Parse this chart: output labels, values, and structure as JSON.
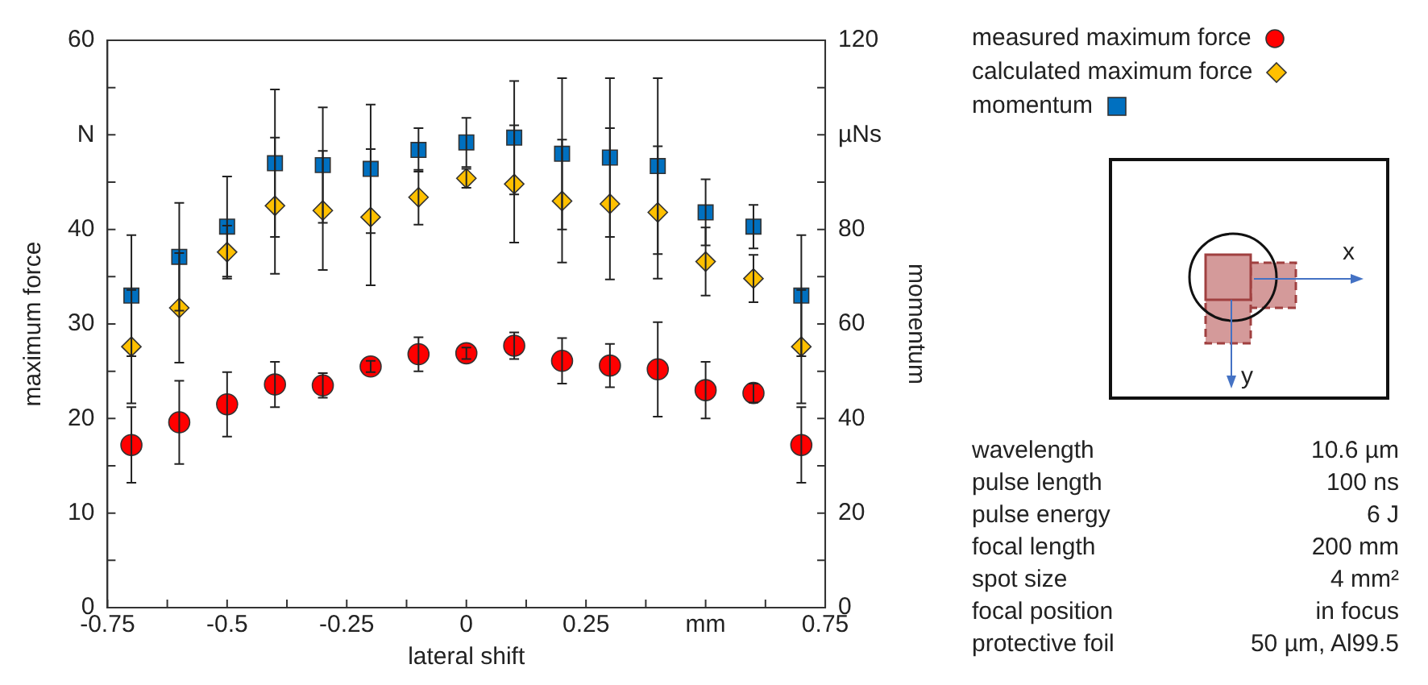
{
  "chart_data": {
    "type": "scatter",
    "xlabel": "lateral shift",
    "ylabel": "maximum force",
    "y2label": "momentum",
    "x": [
      -0.7,
      -0.6,
      -0.5,
      -0.4,
      -0.3,
      -0.2,
      -0.1,
      0,
      0.1,
      0.2,
      0.3,
      0.4,
      0.5,
      0.6,
      0.7
    ],
    "series": [
      {
        "name": "measured maximum force",
        "color": "#ff0000",
        "marker": "circle",
        "values": [
          17.2,
          19.6,
          21.5,
          23.6,
          23.5,
          25.5,
          26.8,
          26.9,
          27.7,
          26.1,
          25.6,
          25.2,
          23.0,
          22.7,
          17.2
        ],
        "errors": [
          4,
          4.4,
          3.4,
          2.4,
          1.3,
          0.6,
          1.8,
          0.6,
          1.4,
          2.4,
          2.3,
          5,
          3,
          1,
          4
        ]
      },
      {
        "name": "calculated maximum force",
        "color": "#ffc000",
        "marker": "diamond",
        "values": [
          27.6,
          31.7,
          37.6,
          42.5,
          42.0,
          41.3,
          43.4,
          45.4,
          44.8,
          43.0,
          42.7,
          41.8,
          36.6,
          34.8,
          27.6
        ],
        "errors": [
          6,
          5.8,
          2.8,
          7.2,
          6.3,
          7.2,
          2.9,
          1,
          6.2,
          6.5,
          8,
          7,
          3.6,
          2.5,
          6
        ]
      },
      {
        "name": "momentum",
        "color": "#0070c0",
        "marker": "square",
        "axis": "y2",
        "values": [
          66,
          74.2,
          80.6,
          94,
          93.6,
          92.8,
          96.8,
          98.4,
          99.4,
          96,
          95.2,
          93.4,
          83.6,
          80.6,
          66
        ],
        "errors": [
          12.8,
          11.4,
          10.6,
          15.6,
          12.2,
          13.6,
          4.6,
          5.2,
          12,
          16,
          16.8,
          18.6,
          7,
          4.6,
          12.8
        ]
      }
    ],
    "xlim": [
      -0.75,
      0.75
    ],
    "xticks": [
      -0.75,
      {
        "value": -0.625,
        "label": null
      },
      -0.5,
      {
        "value": -0.375,
        "label": null
      },
      -0.25,
      {
        "value": -0.125,
        "label": null
      },
      0,
      {
        "value": 0.125,
        "label": null
      },
      0.25,
      {
        "value": 0.375,
        "label": null
      },
      {
        "value": 0.5,
        "label": "mm"
      },
      {
        "value": 0.625,
        "label": null
      },
      0.75
    ],
    "ylim": [
      0,
      60
    ],
    "yticks": [
      0,
      {
        "value": 5,
        "label": null
      },
      10,
      {
        "value": 15,
        "label": null
      },
      20,
      {
        "value": 25,
        "label": null
      },
      30,
      {
        "value": 35,
        "label": null
      },
      40,
      {
        "value": 45,
        "label": null
      },
      {
        "value": 50,
        "label": "N"
      },
      {
        "value": 55,
        "label": null
      },
      60
    ],
    "y2lim": [
      0,
      120
    ],
    "y2ticks": [
      0,
      {
        "value": 10,
        "label": null
      },
      20,
      {
        "value": 30,
        "label": null
      },
      40,
      {
        "value": 50,
        "label": null
      },
      60,
      {
        "value": 70,
        "label": null
      },
      80,
      {
        "value": 90,
        "label": null
      },
      {
        "value": 100,
        "label": "µNs"
      },
      {
        "value": 110,
        "label": null
      },
      120
    ],
    "grid": false,
    "legend": "top right",
    "annotations": [
      "x",
      "y",
      "wavelength",
      "10.6 µm",
      "pulse length",
      "100 ns",
      "pulse energy",
      "6 J",
      "focal length",
      "200 mm",
      "spot size",
      "4 mm²",
      "focal position",
      "in focus",
      "protective foil",
      "50 µm, Al99.5"
    ]
  }
}
